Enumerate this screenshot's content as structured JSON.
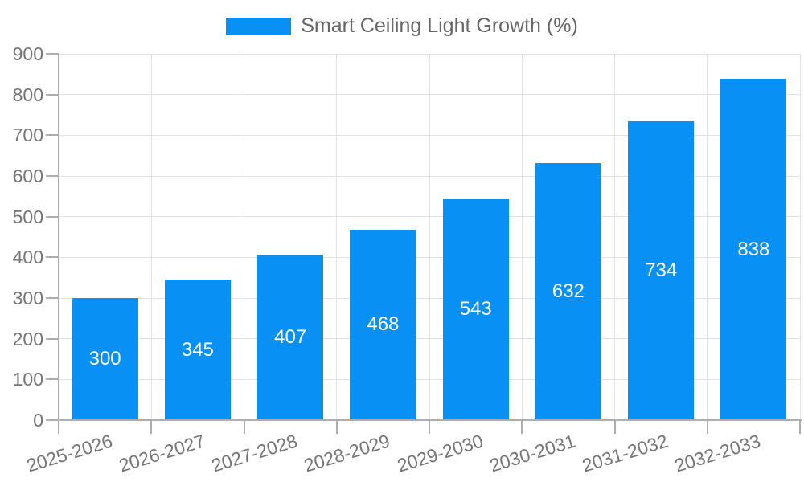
{
  "legend": {
    "label": "Smart Ceiling Light Growth (%)"
  },
  "colors": {
    "bar": "#0890F5",
    "grid": "#E1E1E1",
    "axis": "#ADADAD",
    "axis_text": "#757575",
    "legend_text": "#666666",
    "bar_label_text": "#FFFFFF",
    "background": "#FFFFFF"
  },
  "chart_data": {
    "type": "bar",
    "title": "",
    "xlabel": "",
    "ylabel": "",
    "categories": [
      "2025-2026",
      "2026-2027",
      "2027-2028",
      "2028-2029",
      "2029-2030",
      "2030-2031",
      "2031-2032",
      "2032-2033"
    ],
    "series": [
      {
        "name": "Smart Ceiling Light Growth (%)",
        "values": [
          300,
          345,
          407,
          468,
          543,
          632,
          734,
          838
        ]
      }
    ],
    "values": [
      300,
      345,
      407,
      468,
      543,
      632,
      734,
      838
    ],
    "value_labels": [
      "300",
      "345",
      "407",
      "468",
      "543",
      "632",
      "734",
      "838"
    ],
    "value_label_position": "inside-center",
    "ylim": [
      0,
      900
    ],
    "ytick_interval": 100,
    "ytick_labels": [
      "0",
      "100",
      "200",
      "300",
      "400",
      "500",
      "600",
      "700",
      "800",
      "900"
    ],
    "grid": "both",
    "legend_position": "top-center",
    "xtick_label_rotation_deg": -17
  }
}
